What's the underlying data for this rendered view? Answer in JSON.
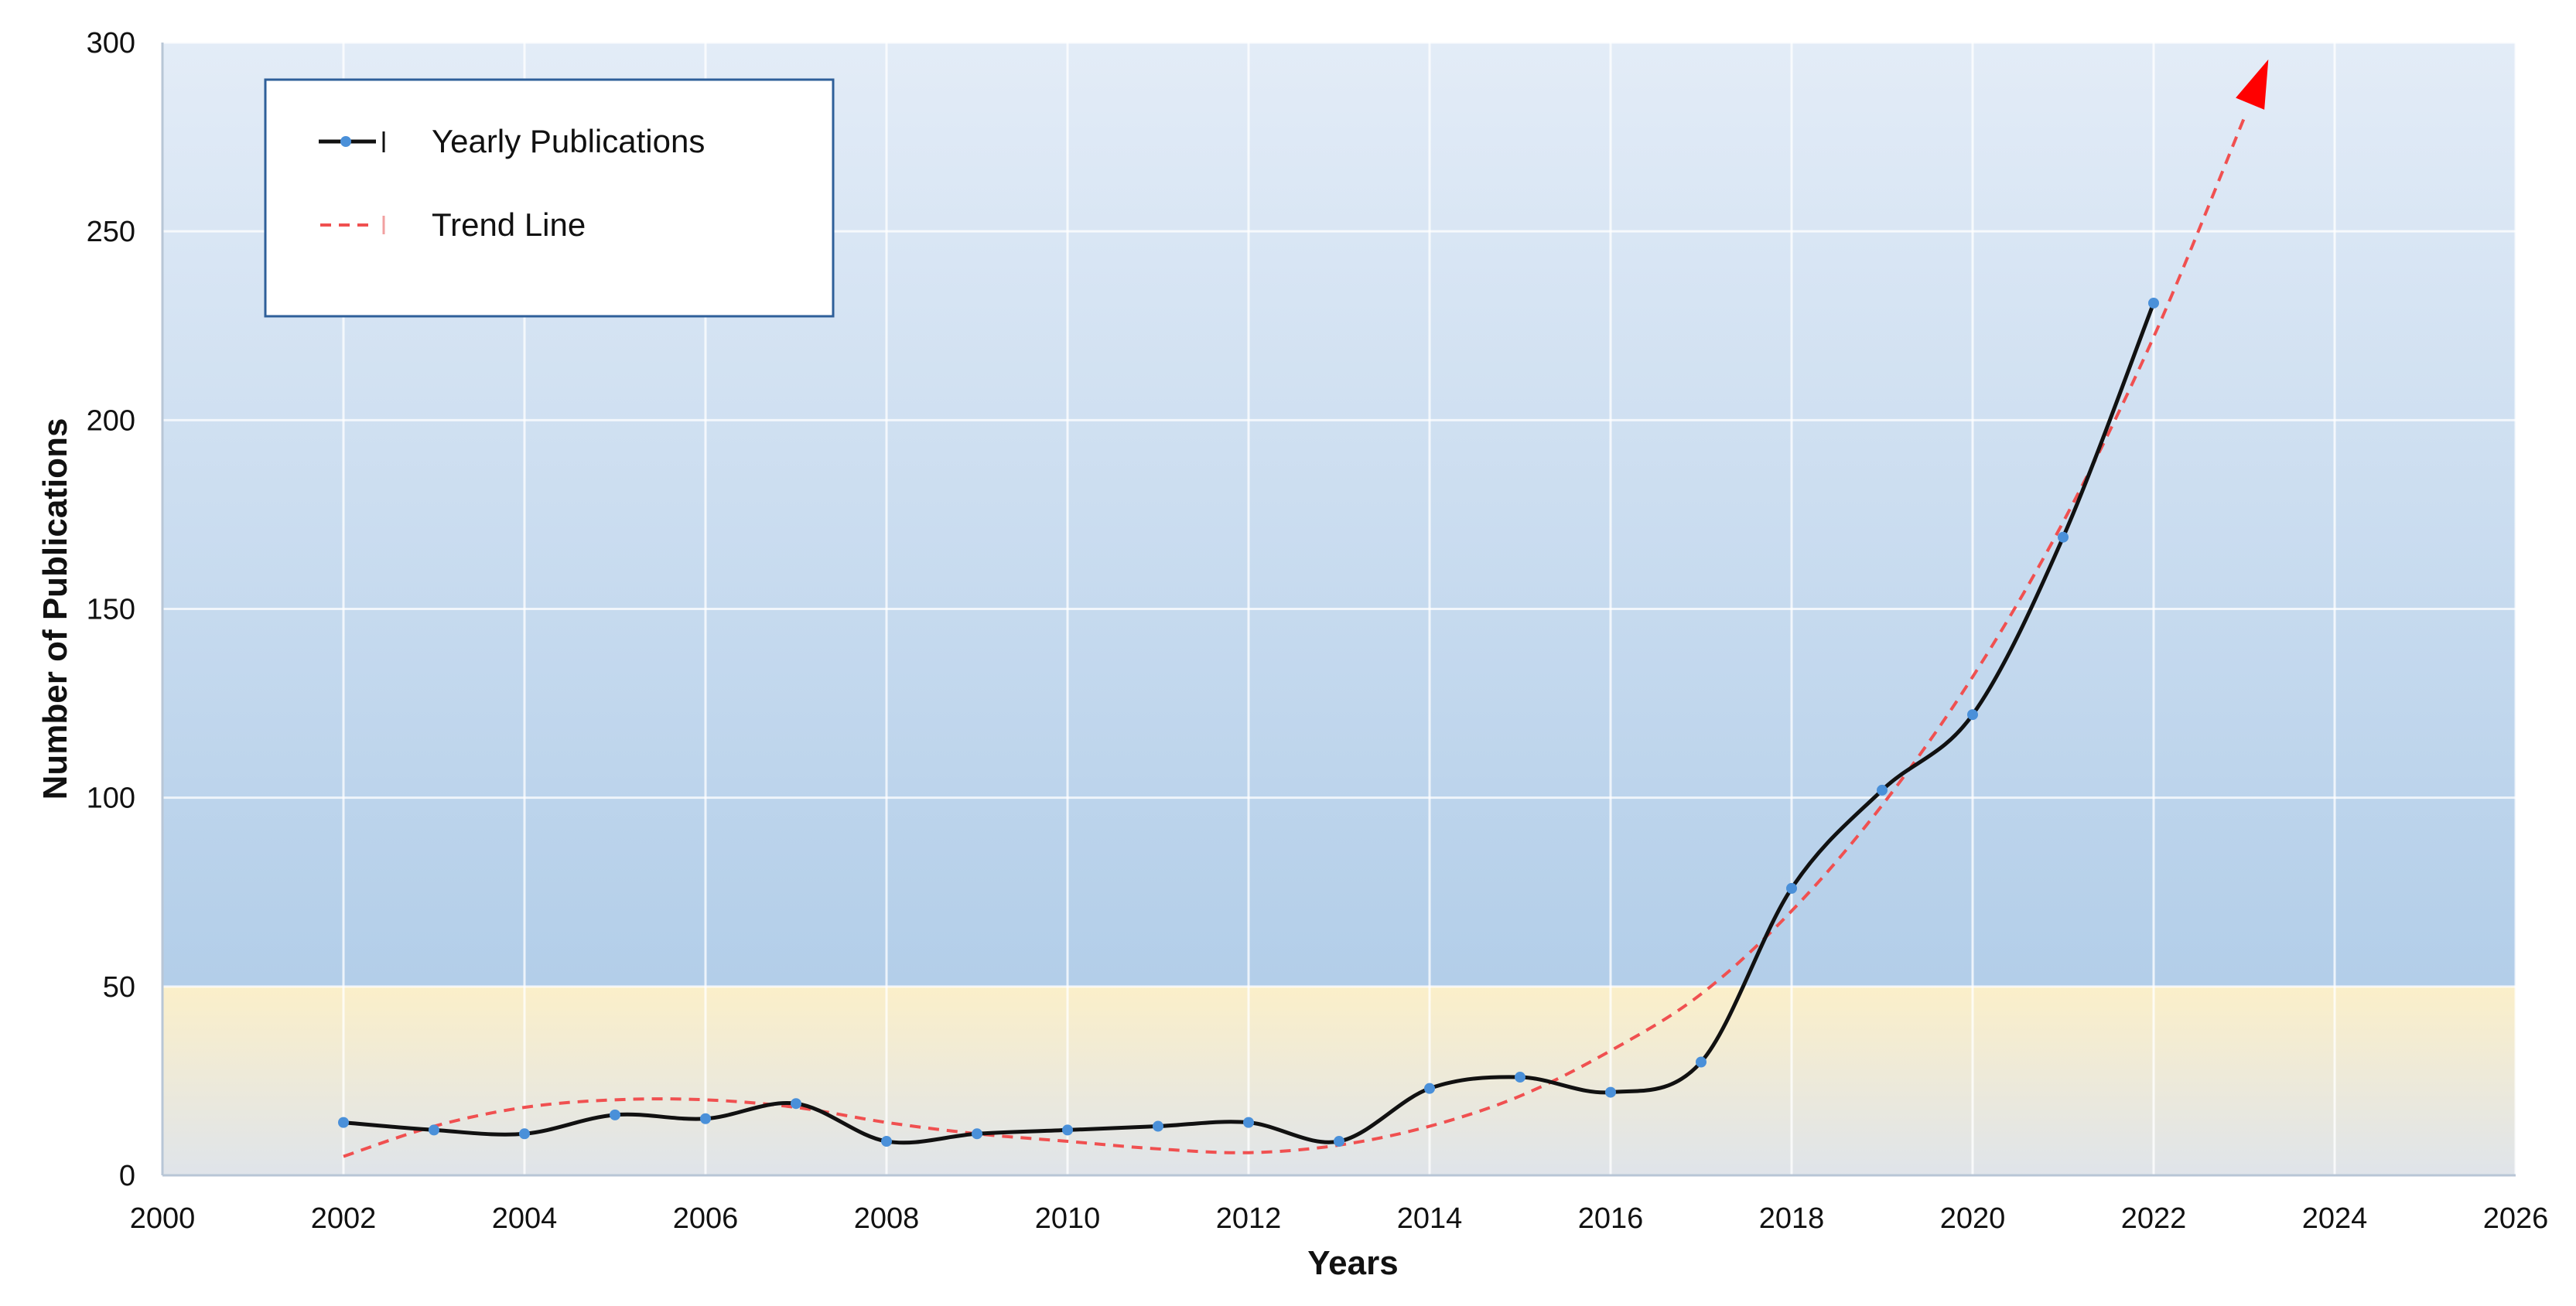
{
  "chart_data": {
    "type": "line",
    "title": "",
    "xlabel": "Years",
    "ylabel": "Number of Publications",
    "xlim": [
      2000,
      2026
    ],
    "ylim": [
      0,
      300
    ],
    "x_ticks": [
      2000,
      2002,
      2004,
      2006,
      2008,
      2010,
      2012,
      2014,
      2016,
      2018,
      2020,
      2022,
      2024,
      2026
    ],
    "y_ticks": [
      0,
      50,
      100,
      150,
      200,
      250,
      300
    ],
    "grid": true,
    "highlight_band": {
      "from": 0,
      "to": 50,
      "color": "#f7ecc6"
    },
    "plot_background": {
      "top": "#e3ecf7",
      "bottom": "#a9c8e6"
    },
    "legend_position": "top-left",
    "series": [
      {
        "name": "Yearly Publications",
        "style": "solid-markers",
        "color": "#111111",
        "marker_color": "#4a90d9",
        "x": [
          2002,
          2003,
          2004,
          2005,
          2006,
          2007,
          2008,
          2009,
          2010,
          2011,
          2012,
          2013,
          2014,
          2015,
          2016,
          2017,
          2018,
          2019,
          2020,
          2021,
          2022
        ],
        "values": [
          14,
          12,
          11,
          16,
          15,
          19,
          9,
          11,
          12,
          13,
          14,
          9,
          23,
          26,
          22,
          30,
          76,
          102,
          122,
          169,
          231
        ]
      },
      {
        "name": "Trend Line",
        "style": "dashed-arrow",
        "color": "#f05050",
        "arrow_color": "#ff0000",
        "x": [
          2002,
          2003,
          2004,
          2005,
          2006,
          2007,
          2008,
          2009,
          2010,
          2011,
          2012,
          2013,
          2014,
          2015,
          2016,
          2017,
          2018,
          2019,
          2020,
          2021,
          2022,
          2023
        ],
        "values": [
          5,
          13,
          18,
          20,
          20,
          18,
          14,
          11,
          9,
          7,
          6,
          8,
          13,
          21,
          33,
          48,
          70,
          98,
          132,
          173,
          222,
          280
        ]
      }
    ]
  }
}
